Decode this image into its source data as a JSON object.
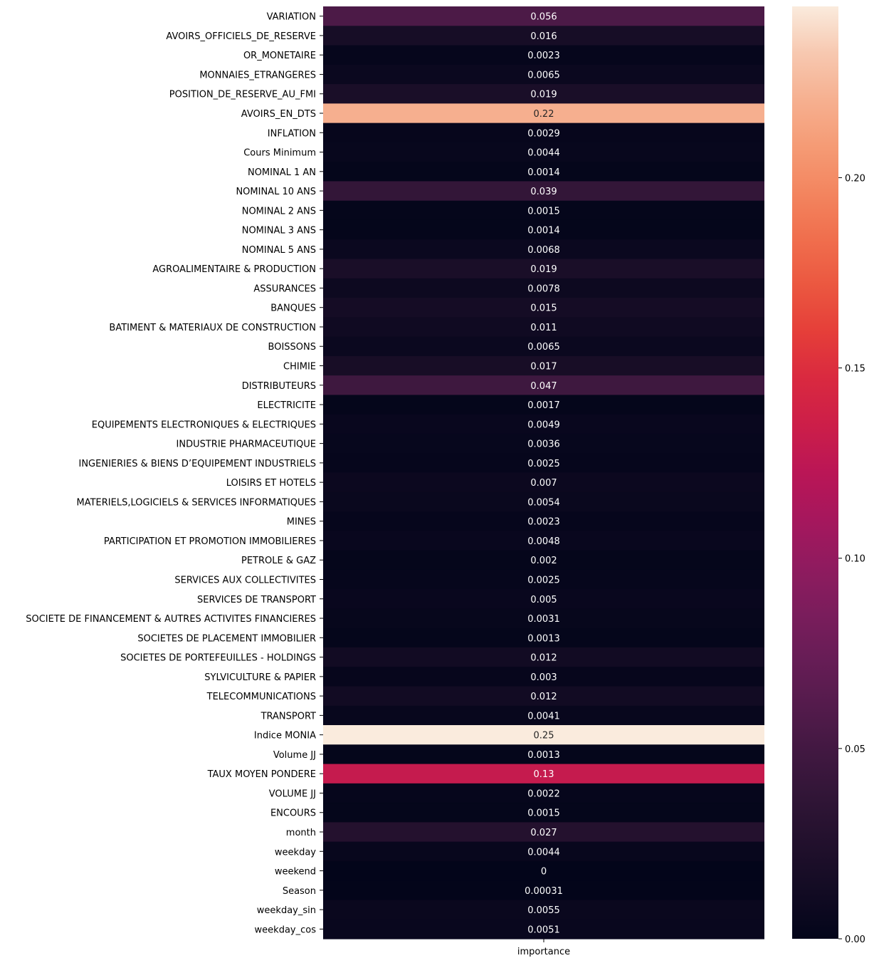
{
  "chart_data": {
    "type": "heatmap",
    "title": "",
    "xlabel": "",
    "ylabel": "",
    "columns": [
      "importance"
    ],
    "rows": [
      {
        "label": "VARIATION",
        "value": 0.056,
        "text": "0.056"
      },
      {
        "label": "AVOIRS_OFFICIELS_DE_RESERVE",
        "value": 0.016,
        "text": "0.016"
      },
      {
        "label": "OR_MONETAIRE",
        "value": 0.0023,
        "text": "0.0023"
      },
      {
        "label": "MONNAIES_ETRANGERES",
        "value": 0.0065,
        "text": "0.0065"
      },
      {
        "label": "POSITION_DE_RESERVE_AU_FMI",
        "value": 0.019,
        "text": "0.019"
      },
      {
        "label": "AVOIRS_EN_DTS",
        "value": 0.22,
        "text": "0.22"
      },
      {
        "label": "INFLATION",
        "value": 0.0029,
        "text": "0.0029"
      },
      {
        "label": "Cours Minimum",
        "value": 0.0044,
        "text": "0.0044"
      },
      {
        "label": "NOMINAL 1 AN",
        "value": 0.0014,
        "text": "0.0014"
      },
      {
        "label": "NOMINAL 10 ANS",
        "value": 0.039,
        "text": "0.039"
      },
      {
        "label": "NOMINAL 2 ANS",
        "value": 0.0015,
        "text": "0.0015"
      },
      {
        "label": "NOMINAL 3 ANS",
        "value": 0.0014,
        "text": "0.0014"
      },
      {
        "label": "NOMINAL 5 ANS",
        "value": 0.0068,
        "text": "0.0068"
      },
      {
        "label": "AGROALIMENTAIRE & PRODUCTION",
        "value": 0.019,
        "text": "0.019"
      },
      {
        "label": "ASSURANCES",
        "value": 0.0078,
        "text": "0.0078"
      },
      {
        "label": "BANQUES",
        "value": 0.015,
        "text": "0.015"
      },
      {
        "label": "BATIMENT & MATERIAUX DE CONSTRUCTION",
        "value": 0.011,
        "text": "0.011"
      },
      {
        "label": "BOISSONS",
        "value": 0.0065,
        "text": "0.0065"
      },
      {
        "label": "CHIMIE",
        "value": 0.017,
        "text": "0.017"
      },
      {
        "label": "DISTRIBUTEURS",
        "value": 0.047,
        "text": "0.047"
      },
      {
        "label": "ELECTRICITE",
        "value": 0.0017,
        "text": "0.0017"
      },
      {
        "label": "EQUIPEMENTS ELECTRONIQUES & ELECTRIQUES",
        "value": 0.0049,
        "text": "0.0049"
      },
      {
        "label": "INDUSTRIE PHARMACEUTIQUE",
        "value": 0.0036,
        "text": "0.0036"
      },
      {
        "label": "INGENIERIES & BIENS D’EQUIPEMENT INDUSTRIELS",
        "value": 0.0025,
        "text": "0.0025"
      },
      {
        "label": "LOISIRS ET HOTELS",
        "value": 0.007,
        "text": "0.007"
      },
      {
        "label": "MATERIELS,LOGICIELS & SERVICES INFORMATIQUES",
        "value": 0.0054,
        "text": "0.0054"
      },
      {
        "label": "MINES",
        "value": 0.0023,
        "text": "0.0023"
      },
      {
        "label": "PARTICIPATION ET PROMOTION IMMOBILIERES",
        "value": 0.0048,
        "text": "0.0048"
      },
      {
        "label": "PETROLE & GAZ",
        "value": 0.002,
        "text": "0.002"
      },
      {
        "label": "SERVICES AUX COLLECTIVITES",
        "value": 0.0025,
        "text": "0.0025"
      },
      {
        "label": "SERVICES DE TRANSPORT",
        "value": 0.005,
        "text": "0.005"
      },
      {
        "label": "SOCIETE DE FINANCEMENT & AUTRES ACTIVITES FINANCIERES",
        "value": 0.0031,
        "text": "0.0031"
      },
      {
        "label": "SOCIETES DE PLACEMENT IMMOBILIER",
        "value": 0.0013,
        "text": "0.0013"
      },
      {
        "label": "SOCIETES DE PORTEFEUILLES - HOLDINGS",
        "value": 0.012,
        "text": "0.012"
      },
      {
        "label": "SYLVICULTURE & PAPIER",
        "value": 0.003,
        "text": "0.003"
      },
      {
        "label": "TELECOMMUNICATIONS",
        "value": 0.012,
        "text": "0.012"
      },
      {
        "label": "TRANSPORT",
        "value": 0.0041,
        "text": "0.0041"
      },
      {
        "label": "Indice MONIA",
        "value": 0.25,
        "text": "0.25"
      },
      {
        "label": "Volume JJ",
        "value": 0.0013,
        "text": "0.0013"
      },
      {
        "label": "TAUX MOYEN PONDERE",
        "value": 0.13,
        "text": "0.13"
      },
      {
        "label": "VOLUME JJ",
        "value": 0.0022,
        "text": "0.0022"
      },
      {
        "label": "ENCOURS",
        "value": 0.0015,
        "text": "0.0015"
      },
      {
        "label": "month",
        "value": 0.027,
        "text": "0.027"
      },
      {
        "label": "weekday",
        "value": 0.0044,
        "text": "0.0044"
      },
      {
        "label": "weekend",
        "value": 0,
        "text": "0"
      },
      {
        "label": "Season",
        "value": 0.00031,
        "text": "0.00031"
      },
      {
        "label": "weekday_sin",
        "value": 0.0055,
        "text": "0.0055"
      },
      {
        "label": "weekday_cos",
        "value": 0.0051,
        "text": "0.0051"
      }
    ],
    "colorbar": {
      "colormap": "rocket",
      "range": [
        0,
        0.245
      ],
      "ticks": [
        0,
        0.05,
        0.1,
        0.15,
        0.2
      ],
      "tick_labels": [
        "0.00",
        "0.05",
        "0.10",
        "0.15",
        "0.20"
      ]
    },
    "grid": false,
    "legend": "colorbar-right"
  }
}
